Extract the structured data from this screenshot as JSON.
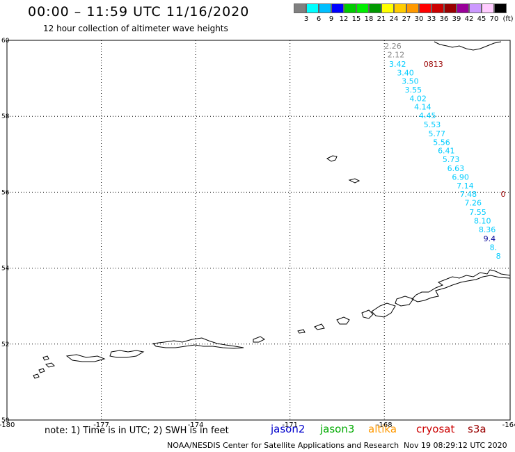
{
  "header": {
    "title": "00:00 – 11:59 UTC 11/16/2020",
    "subtitle": "12 hour collection of altimeter wave heights"
  },
  "legend": {
    "unit": "(ft)",
    "colors": [
      "#808080",
      "#00ffff",
      "#00bfff",
      "#0000ff",
      "#00cc00",
      "#00ee00",
      "#009900",
      "#ffff00",
      "#ffcc00",
      "#ff9900",
      "#ff0000",
      "#cc0000",
      "#990000",
      "#990099",
      "#cc99ff",
      "#ffccff",
      "#000000"
    ],
    "labels": [
      "3",
      "6",
      "9",
      "12",
      "15",
      "18",
      "21",
      "24",
      "27",
      "30",
      "33",
      "36",
      "39",
      "42",
      "45",
      "70"
    ]
  },
  "map": {
    "lon_range": [
      -180,
      -164
    ],
    "lat_range": [
      50,
      60
    ],
    "lon_ticks": [
      "-180",
      "-177",
      "-174",
      "-171",
      "-168",
      "-164"
    ],
    "lat_ticks": [
      "60",
      "58",
      "56",
      "54",
      "52",
      "50"
    ],
    "labels": [
      {
        "text": "2.26",
        "lon": -168.0,
        "lat": 59.85,
        "color": "#888888"
      },
      {
        "text": "2.12",
        "lon": -167.9,
        "lat": 59.62,
        "color": "#888888"
      },
      {
        "text": "3.42",
        "lon": -167.85,
        "lat": 59.38,
        "color": "#00ccff"
      },
      {
        "text": "0813",
        "lon": -166.75,
        "lat": 59.38,
        "color": "#990000"
      },
      {
        "text": "3.40",
        "lon": -167.6,
        "lat": 59.15,
        "color": "#00ccff"
      },
      {
        "text": "3.50",
        "lon": -167.45,
        "lat": 58.93,
        "color": "#00ccff"
      },
      {
        "text": "3.55",
        "lon": -167.35,
        "lat": 58.7,
        "color": "#00ccff"
      },
      {
        "text": "4.02",
        "lon": -167.2,
        "lat": 58.47,
        "color": "#00ccff"
      },
      {
        "text": "4.14",
        "lon": -167.05,
        "lat": 58.25,
        "color": "#00ccff"
      },
      {
        "text": "4.45",
        "lon": -166.9,
        "lat": 58.02,
        "color": "#00ccff"
      },
      {
        "text": "5.53",
        "lon": -166.75,
        "lat": 57.78,
        "color": "#00ccff"
      },
      {
        "text": "5.77",
        "lon": -166.6,
        "lat": 57.55,
        "color": "#00ccff"
      },
      {
        "text": "5.56",
        "lon": -166.45,
        "lat": 57.32,
        "color": "#00ccff"
      },
      {
        "text": "6.41",
        "lon": -166.3,
        "lat": 57.1,
        "color": "#00ccff"
      },
      {
        "text": "5.73",
        "lon": -166.15,
        "lat": 56.87,
        "color": "#00ccff"
      },
      {
        "text": "6.63",
        "lon": -166.0,
        "lat": 56.63,
        "color": "#00ccff"
      },
      {
        "text": "6.90",
        "lon": -165.85,
        "lat": 56.4,
        "color": "#00ccff"
      },
      {
        "text": "7.14",
        "lon": -165.7,
        "lat": 56.17,
        "color": "#00ccff"
      },
      {
        "text": "7.48",
        "lon": -165.6,
        "lat": 55.95,
        "color": "#00ccff"
      },
      {
        "text": "0",
        "lon": -164.3,
        "lat": 55.95,
        "color": "#990000"
      },
      {
        "text": "7.26",
        "lon": -165.45,
        "lat": 55.72,
        "color": "#00ccff"
      },
      {
        "text": "7.55",
        "lon": -165.3,
        "lat": 55.48,
        "color": "#00ccff"
      },
      {
        "text": "8.10",
        "lon": -165.15,
        "lat": 55.25,
        "color": "#00ccff"
      },
      {
        "text": "8.36",
        "lon": -165.0,
        "lat": 55.02,
        "color": "#00ccff"
      },
      {
        "text": "9.4",
        "lon": -164.85,
        "lat": 54.78,
        "color": "#000099"
      },
      {
        "text": "8.",
        "lon": -164.65,
        "lat": 54.55,
        "color": "#00ccff"
      },
      {
        "text": "8",
        "lon": -164.45,
        "lat": 54.32,
        "color": "#00ccff"
      }
    ]
  },
  "footer": {
    "note": "note: 1) Time is in UTC; 2) SWH is in feet",
    "satellites": [
      {
        "name": "jason2",
        "color": "#0000cc"
      },
      {
        "name": "jason3",
        "color": "#00aa00"
      },
      {
        "name": "altika",
        "color": "#ff9900"
      },
      {
        "name": "cryosat",
        "color": "#cc0000"
      },
      {
        "name": "s3a",
        "color": "#990000"
      }
    ],
    "credit": "NOAA/NESDIS Center for Satellite Applications and Research",
    "timestamp": "Nov 19 08:29:12 UTC 2020"
  }
}
